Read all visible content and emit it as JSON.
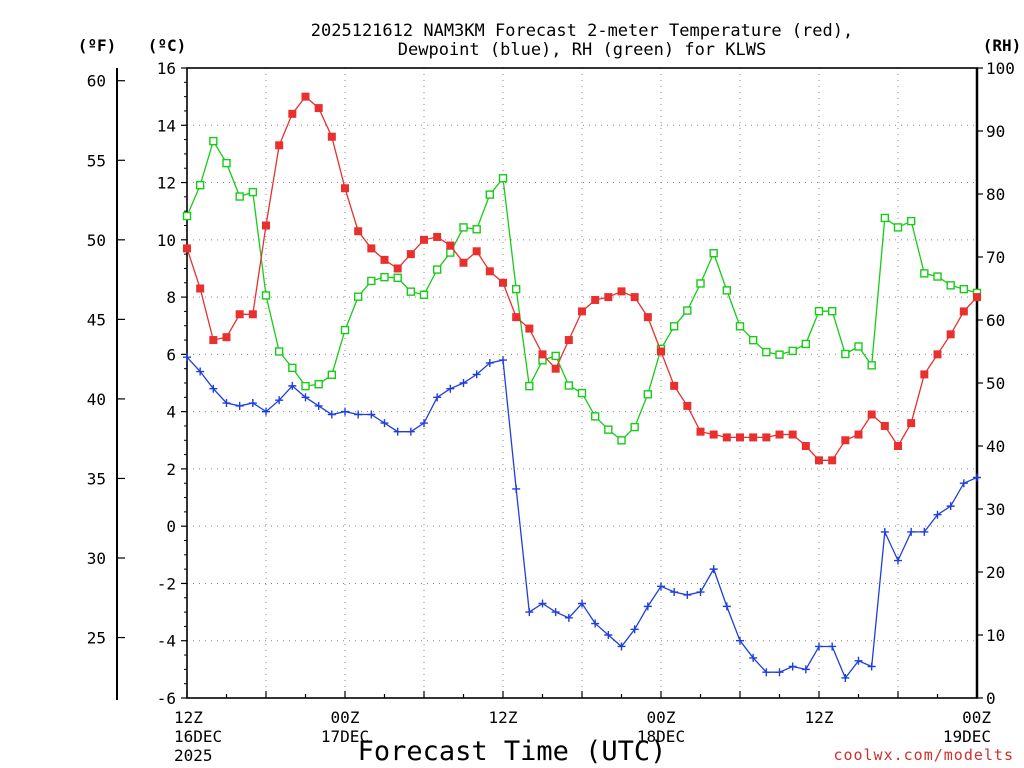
{
  "chart_data": {
    "type": "line",
    "title_line1": "2025121612 NAM3KM Forecast 2-meter Temperature (red),",
    "title_line2": "Dewpoint (blue), RH (green) for KLWS",
    "xlabel": "Forecast Time (UTC)",
    "credit": "coolwx.com/modelts",
    "units": {
      "fahrenheit": "(ºF)",
      "celsius": "(ºC)",
      "rh": "(RH)"
    },
    "x_hours_range": [
      0,
      60
    ],
    "x_ticks": [
      {
        "hour": 0,
        "line1": "12Z",
        "line2": "16DEC",
        "line3": "2025"
      },
      {
        "hour": 12,
        "line1": "00Z",
        "line2": "17DEC",
        "line3": ""
      },
      {
        "hour": 24,
        "line1": "12Z",
        "line2": "",
        "line3": ""
      },
      {
        "hour": 36,
        "line1": "00Z",
        "line2": "18DEC",
        "line3": ""
      },
      {
        "hour": 48,
        "line1": "12Z",
        "line2": "",
        "line3": ""
      },
      {
        "hour": 60,
        "line1": "00Z",
        "line2": "19DEC",
        "line3": ""
      }
    ],
    "ylim_celsius": [
      -6,
      16
    ],
    "celsius_ticks": [
      "16",
      "14",
      "12",
      "10",
      "8",
      "6",
      "4",
      "2",
      "0",
      "-2",
      "-4",
      "-6"
    ],
    "fahrenheit_ticks": [
      "60",
      "55",
      "50",
      "45",
      "40",
      "35",
      "30",
      "25"
    ],
    "rh_ticks": [
      "100",
      "90",
      "80",
      "70",
      "60",
      "50",
      "40",
      "30",
      "20",
      "10",
      "0"
    ],
    "ylim_rh": [
      0,
      100
    ],
    "colors": {
      "temperature": "#e8302e",
      "dewpoint": "#1f3fdd",
      "rh": "#16cc16"
    },
    "series": [
      {
        "name": "Temperature (C)",
        "values": [
          9.7,
          8.3,
          6.5,
          6.6,
          7.4,
          7.4,
          10.5,
          13.3,
          14.4,
          15.0,
          14.6,
          13.6,
          11.8,
          10.3,
          9.7,
          9.3,
          9.0,
          9.5,
          10.0,
          10.1,
          9.8,
          9.2,
          9.6,
          8.9,
          8.5,
          7.3,
          6.9,
          6.0,
          5.5,
          6.5,
          7.5,
          7.9,
          8.0,
          8.2,
          8.0,
          7.3,
          6.1,
          4.9,
          4.2,
          3.3,
          3.2,
          3.1,
          3.1,
          3.1,
          3.1,
          3.2,
          3.2,
          2.8,
          2.3,
          2.3,
          3.0,
          3.2,
          3.9,
          3.5,
          2.8,
          3.6,
          5.3,
          6.0,
          6.7,
          7.5,
          8.0
        ]
      },
      {
        "name": "Dewpoint (C)",
        "values": [
          5.9,
          5.4,
          4.8,
          4.3,
          4.2,
          4.3,
          4.0,
          4.4,
          4.9,
          4.5,
          4.2,
          3.9,
          4.0,
          3.9,
          3.9,
          3.6,
          3.3,
          3.3,
          3.6,
          4.5,
          4.8,
          5.0,
          5.3,
          5.7,
          5.8,
          1.3,
          -3.0,
          -2.7,
          -3.0,
          -3.2,
          -2.7,
          -3.4,
          -3.8,
          -4.2,
          -3.6,
          -2.8,
          -2.1,
          -2.3,
          -2.4,
          -2.3,
          -1.5,
          -2.8,
          -4.0,
          -4.6,
          -5.1,
          -5.1,
          -4.9,
          -5.0,
          -4.2,
          -4.2,
          -5.3,
          -4.7,
          -4.9,
          -0.2,
          -1.2,
          -0.2,
          -0.2,
          0.4,
          0.7,
          1.5,
          1.7
        ]
      },
      {
        "name": "RH (%)",
        "values": [
          76.5,
          81.4,
          88.4,
          84.9,
          79.6,
          80.3,
          63.9,
          55.0,
          52.4,
          49.5,
          49.8,
          51.3,
          58.4,
          63.7,
          66.2,
          66.8,
          66.7,
          64.5,
          64.0,
          68.0,
          70.7,
          74.7,
          74.4,
          79.9,
          82.5,
          64.9,
          49.5,
          53.6,
          54.3,
          49.6,
          48.4,
          44.7,
          42.6,
          40.9,
          43.0,
          48.2,
          55.4,
          59.0,
          61.5,
          65.8,
          70.6,
          64.7,
          59.0,
          56.8,
          54.9,
          54.5,
          55.1,
          56.2,
          61.4,
          61.4,
          54.6,
          55.8,
          52.8,
          76.2,
          74.7,
          75.7,
          67.4,
          66.9,
          65.5,
          64.9,
          64.3
        ]
      }
    ]
  }
}
